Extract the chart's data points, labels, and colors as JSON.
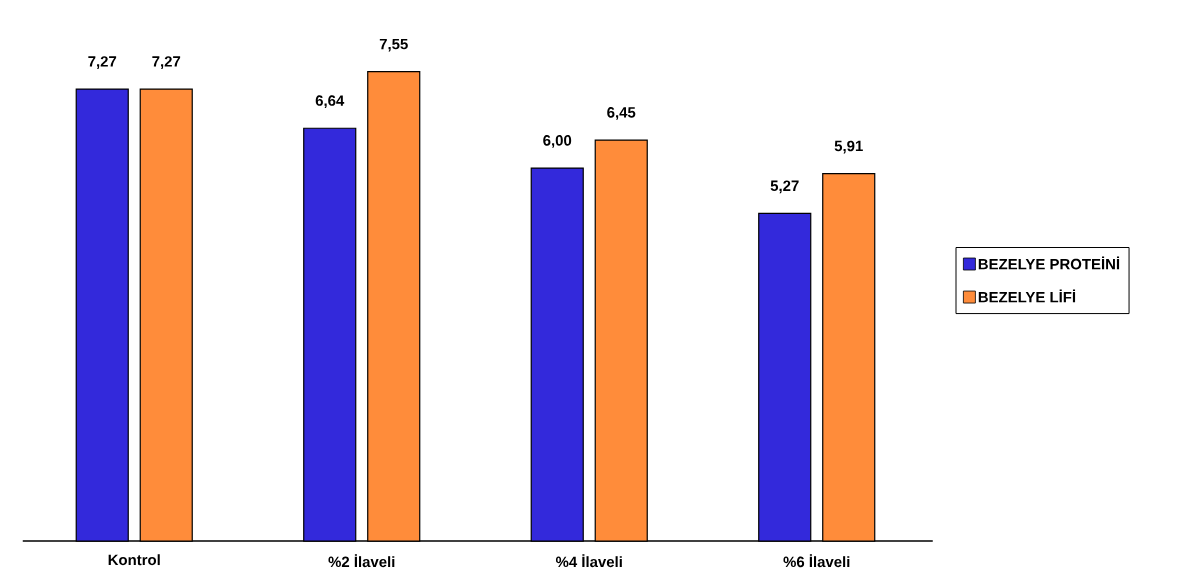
{
  "chart_data": {
    "type": "bar",
    "categories": [
      "Kontrol",
      "%2 İlaveli",
      "%4 İlaveli",
      "%6 İlaveli"
    ],
    "series": [
      {
        "name": "BEZELYE PROTEİNİ",
        "color": "#3329db",
        "values": [
          7.27,
          6.64,
          6.0,
          5.27
        ],
        "value_labels": [
          "7,27",
          "6,64",
          "6,00",
          "5,27"
        ]
      },
      {
        "name": "BEZELYE LİFİ",
        "color": "#ff8c3a",
        "values": [
          7.27,
          7.55,
          6.45,
          5.91
        ],
        "value_labels": [
          "7,27",
          "7,55",
          "6,45",
          "5,91"
        ]
      }
    ],
    "legend": "right"
  }
}
